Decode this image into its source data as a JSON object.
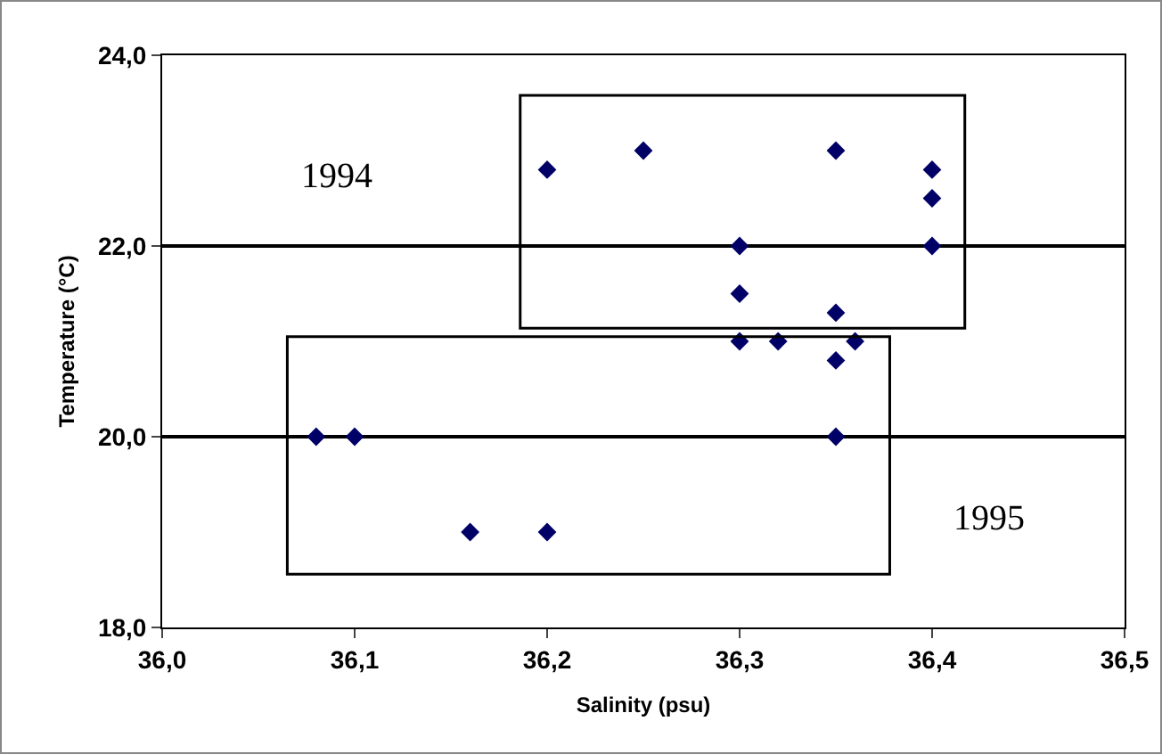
{
  "chart_data": {
    "type": "scatter",
    "xlabel": "Salinity (psu)",
    "ylabel": "Temperature (°C)",
    "x": [
      36.08,
      36.1,
      36.16,
      36.2,
      36.2,
      36.25,
      36.3,
      36.3,
      36.3,
      36.32,
      36.35,
      36.35,
      36.35,
      36.36,
      36.35,
      36.4,
      36.4,
      36.4
    ],
    "values": [
      20.0,
      20.0,
      19.0,
      19.0,
      22.8,
      23.0,
      22.0,
      21.5,
      21.0,
      21.0,
      23.0,
      21.3,
      20.8,
      21.0,
      20.0,
      22.8,
      22.5,
      22.0
    ],
    "color": "#000066",
    "marker": "diamond",
    "grid": "y",
    "xlim": [
      36.0,
      36.5
    ],
    "xticks": [
      {
        "value": 36.0,
        "label": "36,0"
      },
      {
        "value": 36.1,
        "label": "36,1"
      },
      {
        "value": 36.2,
        "label": "36,2"
      },
      {
        "value": 36.3,
        "label": "36,3"
      },
      {
        "value": 36.4,
        "label": "36,4"
      },
      {
        "value": 36.5,
        "label": "36,5"
      }
    ],
    "ylim": [
      18,
      24
    ],
    "yticks": [
      {
        "value": 18,
        "label": "18,0"
      },
      {
        "value": 20,
        "label": "20,0"
      },
      {
        "value": 22,
        "label": "22,0"
      },
      {
        "value": 24,
        "label": "24,0"
      }
    ],
    "annotations": [
      "1994",
      "1995"
    ]
  }
}
